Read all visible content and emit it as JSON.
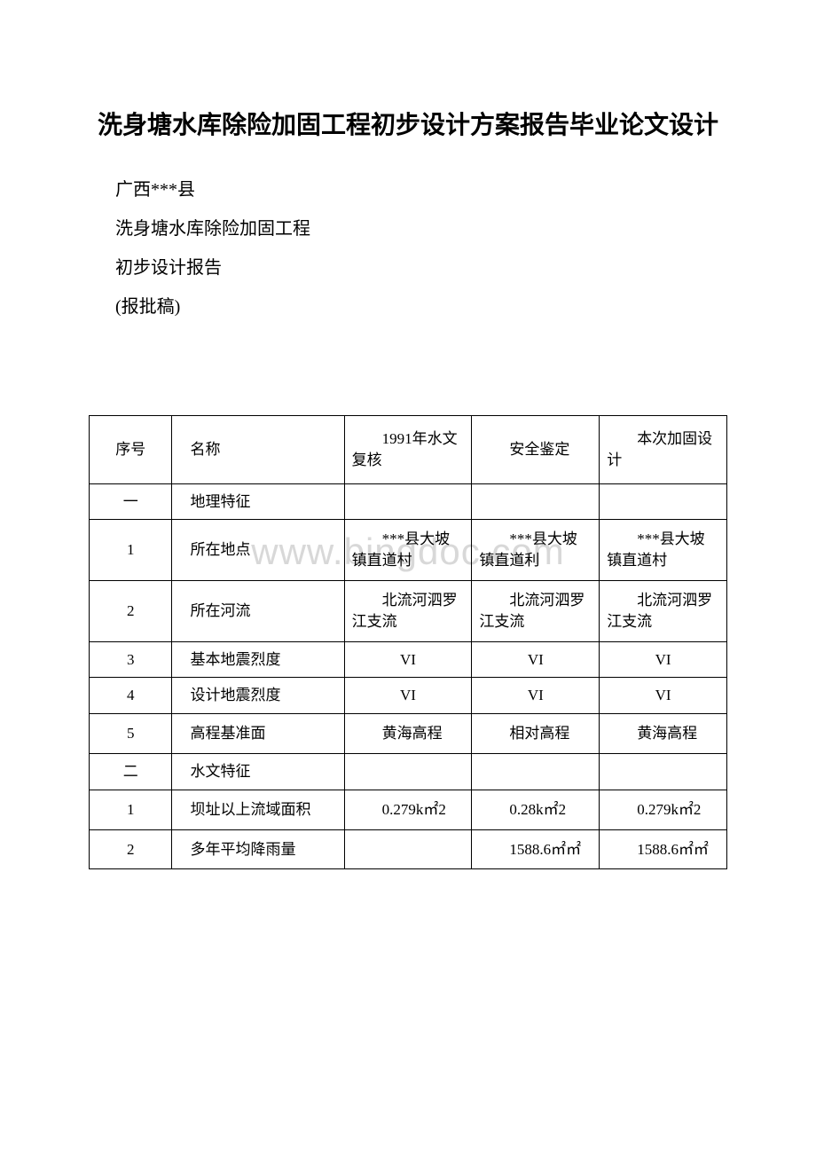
{
  "title": "洗身塘水库除险加固工程初步设计方案报告毕业论文设计",
  "subtitles": {
    "line1": "广西***县",
    "line2": "洗身塘水库除险加固工程",
    "line3": "初步设计报告",
    "line4": "(报批稿)"
  },
  "watermark": "www.bingdoc.com",
  "table": {
    "headers": {
      "seq": "序号",
      "name": "名称",
      "col1991": "1991年水文复核",
      "safety": "安全鉴定",
      "design": "本次加固设计"
    },
    "rows": [
      {
        "seq": "一",
        "name": "地理特征",
        "col1991": "",
        "safety": "",
        "design": "",
        "type": "section"
      },
      {
        "seq": "1",
        "name": "所在地点",
        "col1991": "***县大坡镇直道村",
        "safety": "***县大坡镇直道利",
        "design": "***县大坡镇直道村",
        "type": "data"
      },
      {
        "seq": "2",
        "name": "所在河流",
        "col1991": "北流河泗罗江支流",
        "safety": "北流河泗罗江支流",
        "design": "北流河泗罗江支流",
        "type": "data"
      },
      {
        "seq": "3",
        "name": "基本地震烈度",
        "col1991": "VI",
        "safety": "VI",
        "design": "VI",
        "type": "data-center"
      },
      {
        "seq": "4",
        "name": "设计地震烈度",
        "col1991": "VI",
        "safety": "VI",
        "design": "VI",
        "type": "data-center"
      },
      {
        "seq": "5",
        "name": "高程基准面",
        "col1991": "黄海高程",
        "safety": "相对高程",
        "design": "黄海高程",
        "type": "data"
      },
      {
        "seq": "二",
        "name": "水文特征",
        "col1991": "",
        "safety": "",
        "design": "",
        "type": "section"
      },
      {
        "seq": "1",
        "name": "坝址以上流域面积",
        "col1991": "0.279k㎡2",
        "safety": "0.28k㎡2",
        "design": "0.279k㎡2",
        "type": "data"
      },
      {
        "seq": "2",
        "name": "多年平均降雨量",
        "col1991": "",
        "safety": "1588.6㎡㎡",
        "design": "1588.6㎡㎡",
        "type": "data"
      }
    ]
  },
  "styling": {
    "background_color": "#ffffff",
    "text_color": "#000000",
    "border_color": "#000000",
    "watermark_color": "#d8d8d8",
    "title_fontsize": 28,
    "body_fontsize": 20,
    "table_fontsize": 17,
    "watermark_fontsize": 42
  }
}
